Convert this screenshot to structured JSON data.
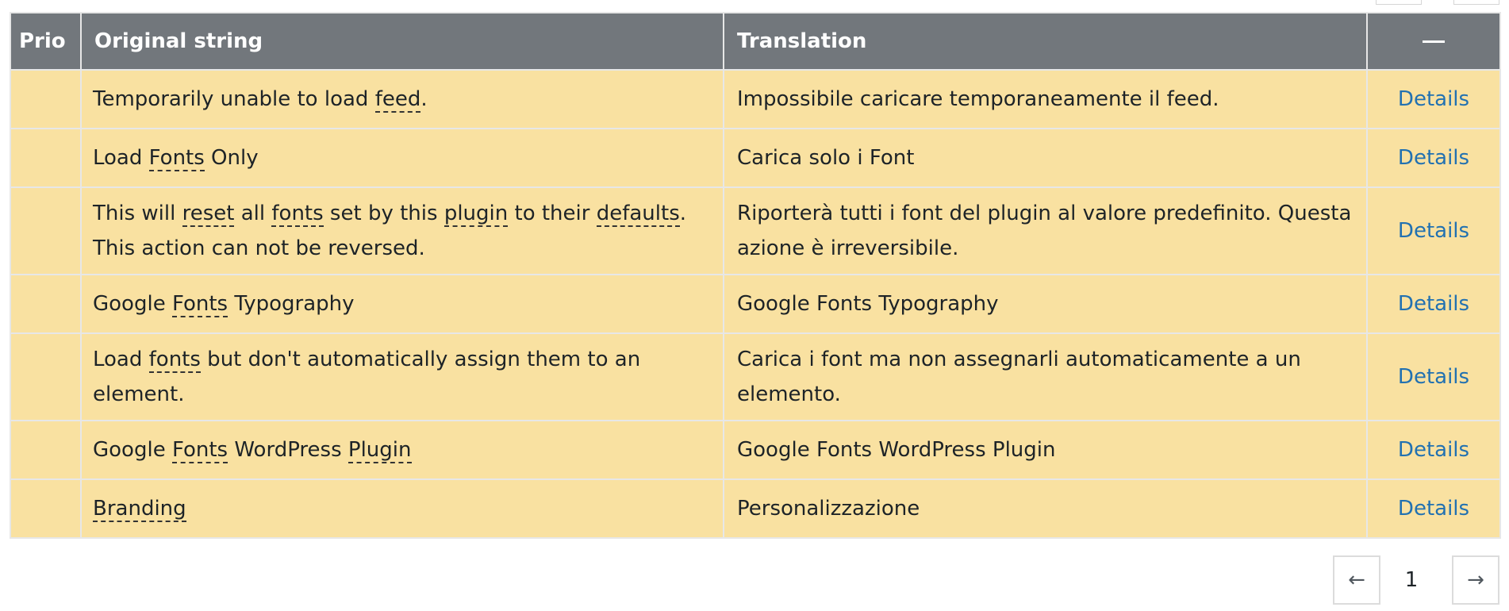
{
  "table": {
    "headers": {
      "prio": "Prio",
      "original": "Original string",
      "translation": "Translation"
    },
    "action_header_icon": "minus-icon",
    "rows": [
      {
        "original": [
          "Temporarily unable to load ",
          {
            "g": "feed"
          },
          "."
        ],
        "translation": "Impossibile caricare temporaneamente il feed.",
        "action": "Details"
      },
      {
        "original": [
          "Load ",
          {
            "g": "Fonts"
          },
          " Only"
        ],
        "translation": "Carica solo i Font",
        "action": "Details"
      },
      {
        "original": [
          "This will ",
          {
            "g": "reset"
          },
          " all ",
          {
            "g": "fonts"
          },
          " set by this ",
          {
            "g": "plugin"
          },
          " to their ",
          {
            "g": "defaults"
          },
          ". This action can not be reversed."
        ],
        "translation": "Riporterà tutti i font del plugin al valore predefinito. Questa azione è irreversibile.",
        "action": "Details"
      },
      {
        "original": [
          "Google ",
          {
            "g": "Fonts"
          },
          " Typography"
        ],
        "translation": "Google Fonts Typography",
        "action": "Details"
      },
      {
        "original": [
          "Load ",
          {
            "g": "fonts"
          },
          " but don't automatically assign them to an element."
        ],
        "translation": "Carica i font ma non assegnarli automaticamente a un elemento.",
        "action": "Details"
      },
      {
        "original": [
          "Google ",
          {
            "g": "Fonts"
          },
          " WordPress ",
          {
            "g": "Plugin"
          }
        ],
        "translation": "Google Fonts WordPress Plugin",
        "action": "Details"
      },
      {
        "original": [
          {
            "g": "Branding"
          }
        ],
        "translation": "Personalizzazione",
        "action": "Details"
      }
    ]
  },
  "pagination": {
    "prev_label": "←",
    "current_page": "1",
    "next_label": "→"
  }
}
